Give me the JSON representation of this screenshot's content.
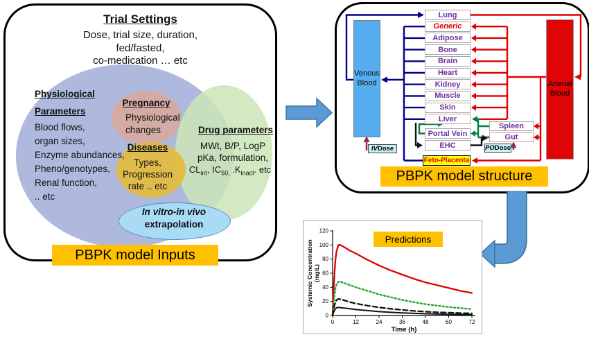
{
  "left_panel": {
    "title": "Trial Settings",
    "subtitle": [
      "Dose, trial size, duration,",
      "fed/fasted,",
      "co-medication  … etc"
    ],
    "physiological": {
      "heading": [
        "Physiological",
        "Parameters"
      ],
      "items": [
        "Blood flows,",
        "organ sizes,",
        "Enzyme abundances,",
        "Pheno/genotypes,",
        "Renal function,",
        ".. etc"
      ]
    },
    "pregnancy": {
      "heading": "Pregnancy",
      "body": [
        "Physiological",
        "changes"
      ]
    },
    "diseases": {
      "heading": "Diseases",
      "body": [
        "Types,",
        "Progression",
        "rate .. etc"
      ]
    },
    "drug": {
      "heading": "Drug parameters",
      "line1": "MWt, B/P, LogP",
      "line2": "pKa, formulation,",
      "line3": [
        {
          "t": "CL"
        },
        {
          "s": "int"
        },
        {
          "t": ", IC"
        },
        {
          "s": "50,"
        },
        {
          "t": " .K"
        },
        {
          "s": "inact"
        },
        {
          "t": ". etc"
        }
      ]
    },
    "ivive": [
      "In vitro-in vivo",
      "extrapolation"
    ],
    "banner": "PBPK model Inputs"
  },
  "right_panel": {
    "venous_blood": "Venous Blood",
    "arterial_blood": "Arterial Blood",
    "organs": [
      {
        "label": "Lung"
      },
      {
        "label": "Generic",
        "variant": "generic"
      },
      {
        "label": "Adipose"
      },
      {
        "label": "Bone"
      },
      {
        "label": "Brain"
      },
      {
        "label": "Heart"
      },
      {
        "label": "Kidney"
      },
      {
        "label": "Muscle"
      },
      {
        "label": "Skin"
      },
      {
        "label": "Liver",
        "variant": "liver"
      }
    ],
    "portal_vein": "Portal Vein",
    "ehc": "EHC",
    "spleen": "Spleen",
    "gut": "Gut",
    "feto_placenta": "Feto-Placenta",
    "iv_dose": [
      {
        "i": "IV"
      },
      {
        "t": " Dose"
      }
    ],
    "po_dose": [
      {
        "i": "PO"
      },
      {
        "t": " Dose"
      }
    ],
    "banner": "PBPK model structure"
  },
  "chart_data": {
    "type": "line",
    "title": "Predictions",
    "xlabel": "Time (h)",
    "ylabel": "Systemic Concentration (mg/L)",
    "ylabel_lines": [
      "Systemic Concentration",
      "(mg/L)"
    ],
    "xlim": [
      0,
      72
    ],
    "ylim": [
      0,
      120
    ],
    "xticks": [
      0,
      12,
      24,
      36,
      48,
      60,
      72
    ],
    "yticks": [
      0,
      20,
      40,
      60,
      80,
      100,
      120
    ],
    "grid": false,
    "legend": "none",
    "series": [
      {
        "name": "red_solid",
        "style": "solid",
        "color": "#DD0000",
        "width": 2.3,
        "points": [
          [
            0,
            0
          ],
          [
            0.5,
            35
          ],
          [
            1,
            62
          ],
          [
            1.5,
            80
          ],
          [
            2,
            91
          ],
          [
            3,
            100
          ],
          [
            4,
            100
          ],
          [
            6,
            97
          ],
          [
            9,
            92
          ],
          [
            12,
            88
          ],
          [
            18,
            79
          ],
          [
            24,
            71
          ],
          [
            30,
            64
          ],
          [
            36,
            58
          ],
          [
            42,
            52
          ],
          [
            48,
            47
          ],
          [
            54,
            43
          ],
          [
            60,
            39
          ],
          [
            66,
            35
          ],
          [
            72,
            32
          ]
        ]
      },
      {
        "name": "green_dotted",
        "style": "dotted",
        "color": "#2CA02C",
        "width": 2.4,
        "points": [
          [
            0,
            0
          ],
          [
            0.5,
            17
          ],
          [
            1,
            30
          ],
          [
            1.5,
            39
          ],
          [
            2,
            44
          ],
          [
            3,
            48
          ],
          [
            4,
            48
          ],
          [
            6,
            46
          ],
          [
            9,
            43
          ],
          [
            12,
            40
          ],
          [
            18,
            35
          ],
          [
            24,
            30
          ],
          [
            30,
            26
          ],
          [
            36,
            22
          ],
          [
            42,
            19
          ],
          [
            48,
            16
          ],
          [
            54,
            14
          ],
          [
            60,
            12
          ],
          [
            66,
            10.5
          ],
          [
            72,
            9
          ]
        ]
      },
      {
        "name": "black_dashed",
        "style": "dashed",
        "color": "#111111",
        "width": 2.3,
        "points": [
          [
            0,
            0
          ],
          [
            0.5,
            9
          ],
          [
            1,
            15
          ],
          [
            1.5,
            19
          ],
          [
            2,
            22
          ],
          [
            3,
            23.5
          ],
          [
            4,
            23
          ],
          [
            6,
            21.5
          ],
          [
            9,
            19
          ],
          [
            12,
            17
          ],
          [
            18,
            14
          ],
          [
            24,
            11.5
          ],
          [
            30,
            9.5
          ],
          [
            36,
            8
          ],
          [
            42,
            6.5
          ],
          [
            48,
            5.5
          ],
          [
            54,
            4.5
          ],
          [
            60,
            4
          ],
          [
            66,
            3.4
          ],
          [
            72,
            3
          ]
        ]
      },
      {
        "name": "black_solid",
        "style": "solid",
        "color": "#111111",
        "width": 2,
        "points": [
          [
            0,
            0
          ],
          [
            0.5,
            4.5
          ],
          [
            1,
            7.5
          ],
          [
            1.5,
            9.5
          ],
          [
            2,
            11
          ],
          [
            3,
            11.5
          ],
          [
            4,
            11
          ],
          [
            6,
            10.5
          ],
          [
            9,
            9.5
          ],
          [
            12,
            8.5
          ],
          [
            18,
            7
          ],
          [
            24,
            5.5
          ],
          [
            30,
            4.5
          ],
          [
            36,
            3.7
          ],
          [
            42,
            3
          ],
          [
            48,
            2.5
          ],
          [
            54,
            2.1
          ],
          [
            60,
            1.8
          ],
          [
            66,
            1.5
          ],
          [
            72,
            1.3
          ]
        ]
      }
    ]
  },
  "colors": {
    "accent_orange": "#FFC000",
    "arrow_blue": "#5B9BD5",
    "arrow_blue_outline": "#41719C",
    "venous_blue": "#56ADF0",
    "arterial_red": "#E00505",
    "line_navy": "#00008B",
    "line_red": "#E00000",
    "line_green": "#008040",
    "line_black": "#111111",
    "dose_purple": "#8B2E66",
    "organ_text_purple": "#7030A0",
    "feto_yellow": "#FFFF00"
  }
}
